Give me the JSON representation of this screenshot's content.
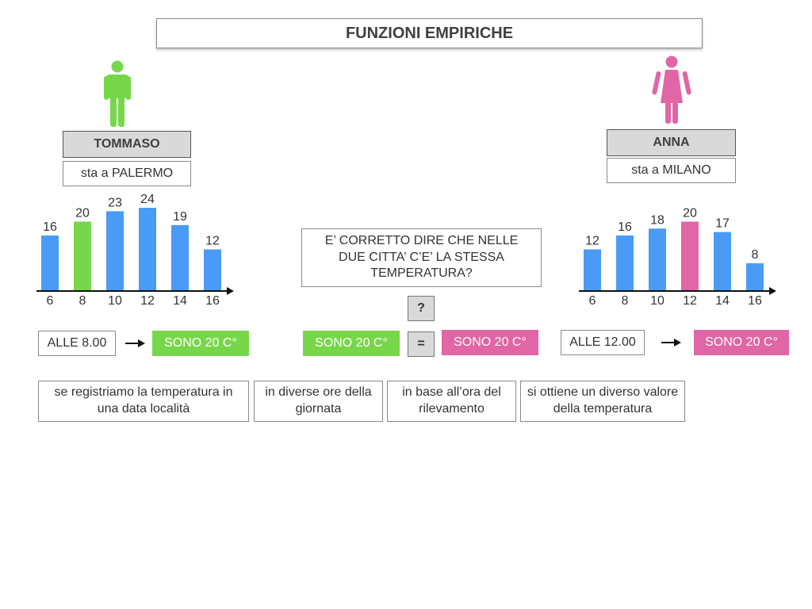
{
  "title": "FUNZIONI EMPIRICHE",
  "colors": {
    "blue": "#4a9bf5",
    "green": "#78d64b",
    "pink": "#e066a6",
    "axis": "#111111"
  },
  "left": {
    "figure_icon": "male-figure-icon",
    "name": "TOMMASO",
    "city_text": "sta a PALERMO",
    "time_label": "ALLE 8.00",
    "result_label": "SONO 20 C°"
  },
  "right": {
    "figure_icon": "female-figure-icon",
    "name": "ANNA",
    "city_text": "sta a MILANO",
    "time_label": "ALLE 12.00",
    "result_label": "SONO 20 C°"
  },
  "center": {
    "question": "E’ CORRETTO DIRE CHE NELLE DUE CITTA’ C’E’ LA STESSA TEMPERATURA?",
    "question_mark": "?",
    "left_value": "SONO 20 C°",
    "equals": "=",
    "right_value": "SONO 20 C°"
  },
  "notes": [
    "se registriamo la temperatura in una data località",
    "in diverse ore della giornata",
    "in base all’ora del rilevamento",
    "si ottiene un diverso valore della temperatura"
  ],
  "chart_data": [
    {
      "type": "bar",
      "categories": [
        "6",
        "8",
        "10",
        "12",
        "14",
        "16"
      ],
      "values": [
        16,
        20,
        23,
        24,
        19,
        12
      ],
      "highlight_index": 1,
      "highlight_color": "#78d64b",
      "bar_color": "#4a9bf5"
    },
    {
      "type": "bar",
      "categories": [
        "6",
        "8",
        "10",
        "12",
        "14",
        "16"
      ],
      "values": [
        12,
        16,
        18,
        20,
        17,
        8
      ],
      "highlight_index": 3,
      "highlight_color": "#e066a6",
      "bar_color": "#4a9bf5"
    }
  ]
}
